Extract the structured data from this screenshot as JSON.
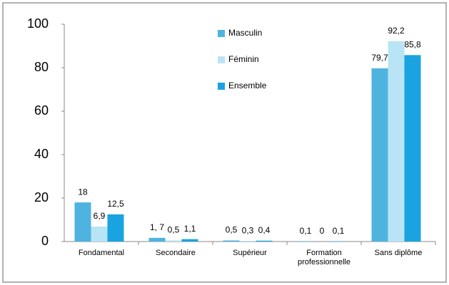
{
  "chart_data": {
    "type": "bar",
    "categories": [
      "Fondamental",
      "Secondaire",
      "Supérieur",
      "Formation professionnelle",
      "Sans diplôme"
    ],
    "series": [
      {
        "name": "Masculin",
        "color": "#4fb3e0",
        "values": [
          18,
          1.7,
          0.5,
          0.1,
          79.7
        ],
        "value_labels": [
          "18",
          "1, 7",
          "0,5",
          "0,1",
          "79,7"
        ]
      },
      {
        "name": "Féminin",
        "color": "#b8e4f5",
        "values": [
          6.9,
          0.5,
          0.3,
          0,
          92.2
        ],
        "value_labels": [
          "6,9",
          "0,5",
          "0,3",
          "0",
          "92,2"
        ]
      },
      {
        "name": "Ensemble",
        "color": "#1aa3e0",
        "values": [
          12.5,
          1.1,
          0.4,
          0.1,
          85.8
        ],
        "value_labels": [
          "12,5",
          "1,1",
          "0,4",
          "0,1",
          "85,8"
        ]
      }
    ],
    "ylim": [
      0,
      100
    ],
    "yticks": [
      0,
      20,
      40,
      60,
      80,
      100
    ],
    "grid": false
  }
}
